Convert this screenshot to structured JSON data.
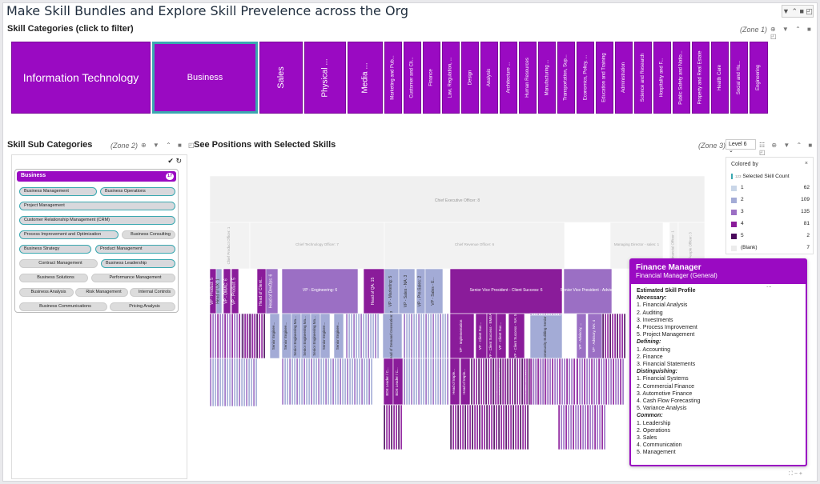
{
  "page": {
    "title": "Make Skill Bundles and Explore Skill Prevelence across the Org",
    "top_tools": "▼ ⌃ ■ ◰"
  },
  "categories": {
    "title": "Skill Categories (click to filter)",
    "zone": "(Zone 1)",
    "tools": "⊕ ▼ ⌃ ■ ◰",
    "items": [
      "Information Technology",
      "Business",
      "Sales",
      "Physical ...",
      "Media ...",
      "Marketing and Pub...",
      "Customer and Cli...",
      "Finance",
      "Law, Regulation, ...",
      "Design",
      "Analysis",
      "Architecture ...",
      "Human Resources",
      "Manufacturing ...",
      "Transportation, Sup...",
      "Economics, Policy, ...",
      "Education and Training",
      "Administration",
      "Science and Research",
      "Hospitality and F...",
      "Public Safety and Natio...",
      "Property and Real Estate",
      "Health Care",
      "Social and Hu...",
      "Engineering"
    ]
  },
  "subcategories": {
    "title": "Skill Sub Categories",
    "zone": "(Zone 2)",
    "tools": "⊕ ▼ ⌃ ■ ◰",
    "check_label": "✔ ↻",
    "group_label": "Business",
    "group_count": "17",
    "pills": [
      "Business Management",
      "Business Operations",
      "Project Management",
      "Customer Relationship Management (CRM)",
      "Process Improvement and Optimization",
      "Business Consulting",
      "Business Strategy",
      "Product Management",
      "Contract Management",
      "Business Leadership",
      "Business Solutions",
      "Performance Management",
      "Business Analysis",
      "Risk Management",
      "Internal Controls",
      "Business Communications",
      "Pricing Analysis"
    ]
  },
  "positions": {
    "title": "See Positions with Selected Skills",
    "zone": "(Zone 3)",
    "level": "Level 6 ⌄",
    "tools": "☷ ⊕ ▼ ⌃ ■ ◰",
    "ceo_label": "Chief Executive Officer: 8",
    "level2": [
      "Chief Product Officer: 1",
      "Chief Technology Officer: 7",
      "Chief Revenue Officer: 6",
      "Managing Director - sales: 1",
      "Financial Officer: 1",
      "People Officer: 3"
    ],
    "level3": [
      "VP - Product: 5",
      "Head of UX: 1",
      "VP - OMAC: 6",
      "VP - Product: 5",
      "Head of Client...",
      "Head of DevOps: 6",
      "VP - Engineering: 6",
      "Head of QA: 15",
      "VP - Marketing: 5",
      "VP - Sales - NA: 3",
      "VP - Pre-Sales: 2",
      "VP - Sales - E...",
      "Senior Vice President - Client Success: 6",
      "Senior Vice President - Advis..."
    ],
    "level4": [
      "Senior Enginee...",
      "Senior Enginee...",
      "Senior Engineering Ma...",
      "Senior Engineering Ma...",
      "Senior Engineering Ma...",
      "Senior Enginee...",
      "Senior Enginee...",
      "Head of Demand Generation: 3",
      "VP - Implementation",
      "VP - Client Suc...",
      "VP - Client Success - EMEA",
      "VP - Client Suc...",
      "VP - Client Success - NA: 5",
      "Community Building Senior ...",
      "VP - Advisory, ...",
      "VP - Advisory, NA: 4"
    ],
    "level5": [
      "BDE Leader / C...",
      "BDE Leader / C...",
      "Head of Imple...",
      "Head of Imple...",
      "Client Success ...",
      "Client Success"
    ]
  },
  "legend": {
    "header": "Colored by",
    "close": "×",
    "measure": "Selected Skill Count",
    "measure_prefix": "123",
    "rows": [
      {
        "label": "1",
        "count": "62",
        "color": "#c9d6e8"
      },
      {
        "label": "2",
        "count": "109",
        "color": "#a3abd6"
      },
      {
        "label": "3",
        "count": "135",
        "color": "#9b6fc4"
      },
      {
        "label": "4",
        "count": "81",
        "color": "#8a1c9a"
      },
      {
        "label": "5",
        "count": "2",
        "color": "#4a0a5c"
      },
      {
        "label": "(Blank)",
        "count": "7",
        "color": "#ececec"
      }
    ]
  },
  "tooltip": {
    "title": "Finance Manager",
    "subtitle": "Financial Manager (General)",
    "profile_heading": "Estimated Skill Profile",
    "necessary_label": "Necessary",
    "necessary": [
      "1. Financial Analysis",
      "2. Auditing",
      "3. Investments",
      "4. Process Improvement",
      "5. Project Management"
    ],
    "defining_label": "Defining",
    "defining": [
      "1. Accounting",
      "2. Finance",
      "3. Financial Statements"
    ],
    "distinguishing_label": "Distinguishing",
    "distinguishing": [
      "1. Financial Systems",
      "2. Commercial Finance",
      "3. Automotive Finance",
      "4. Cash Flow Forecasting",
      "5. Variance Analysis"
    ],
    "common_label": "Common",
    "common": [
      "1. Leadership",
      "2. Operations",
      "3. Sales",
      "4. Communication",
      "5. Management"
    ],
    "more": "...",
    "corner_tools": "⛶ − +"
  },
  "colors": {
    "accent": "#9a0ac2",
    "selected_border": "#3aa8b0"
  }
}
